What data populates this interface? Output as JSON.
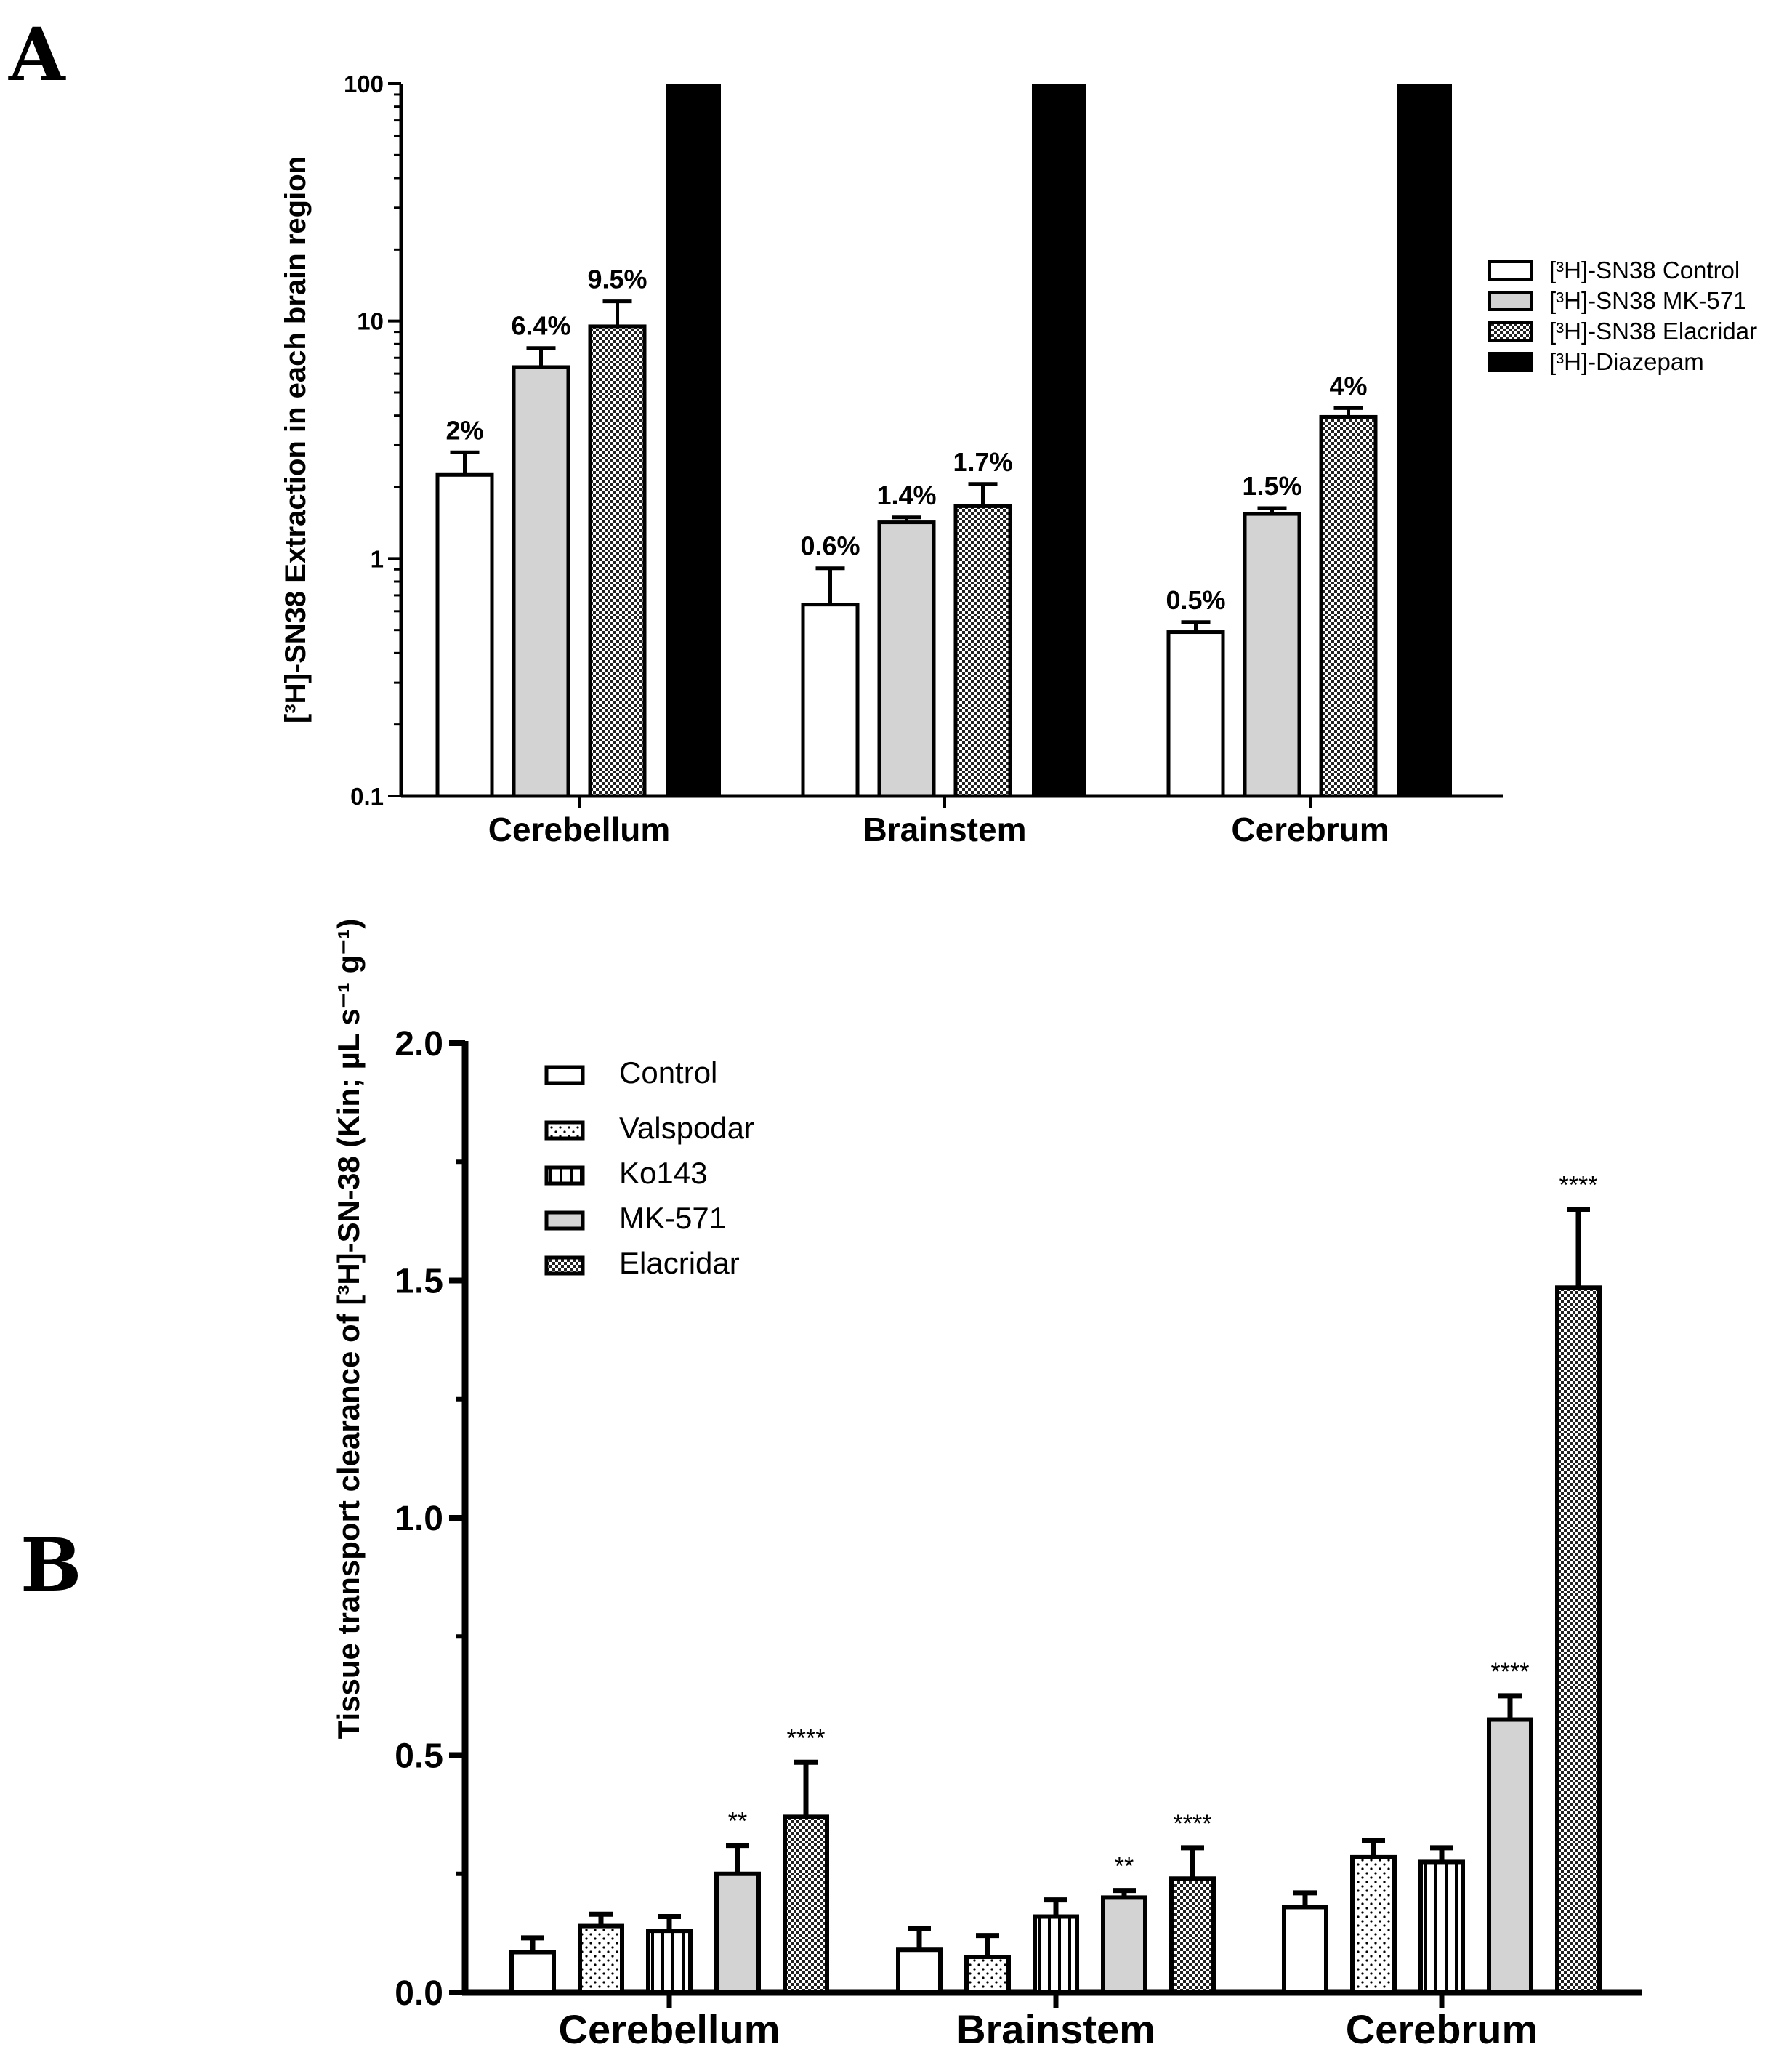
{
  "panels": {
    "a": {
      "letter": "A"
    },
    "b": {
      "letter": "B"
    }
  },
  "chart_data": [
    {
      "type": "bar",
      "scale": "log",
      "categories": [
        "Cerebellum",
        "Brainstem",
        "Cerebrum"
      ],
      "ylabel": "[³H]-SN38 Extraction in each brain region",
      "ylim": [
        0.1,
        100
      ],
      "yticks": [
        "0.1",
        "1",
        "10",
        "100"
      ],
      "series": [
        {
          "name": "[³H]-SN38 Control",
          "pattern": "white",
          "values": [
            2.25,
            0.64,
            0.49
          ],
          "errors": [
            0.55,
            0.27,
            0.05
          ],
          "labels": [
            "2%",
            "0.6%",
            "0.5%"
          ]
        },
        {
          "name": "[³H]-SN38 MK-571",
          "pattern": "gray",
          "values": [
            6.4,
            1.42,
            1.54
          ],
          "errors": [
            1.3,
            0.07,
            0.09
          ],
          "labels": [
            "6.4%",
            "1.4%",
            "1.5%"
          ]
        },
        {
          "name": "[³H]-SN38 Elacridar",
          "pattern": "checker",
          "values": [
            9.5,
            1.66,
            3.95
          ],
          "errors": [
            2.6,
            0.4,
            0.35
          ],
          "labels": [
            "9.5%",
            "1.7%",
            "4%"
          ]
        },
        {
          "name": "[³H]-Diazepam",
          "pattern": "black",
          "values": [
            100,
            100,
            100
          ],
          "errors": [
            0,
            0,
            0
          ],
          "labels": [
            "",
            "",
            ""
          ]
        }
      ],
      "legend": {
        "items": [
          "[³H]-SN38 Control",
          "[³H]-SN38 MK-571",
          "[³H]-SN38 Elacridar",
          "[³H]-Diazepam"
        ],
        "position": "right"
      }
    },
    {
      "type": "bar",
      "scale": "linear",
      "categories": [
        "Cerebellum",
        "Brainstem",
        "Cerebrum"
      ],
      "ylabel": "Tissue transport clearance of [³H]-SN-38 (Kin; µL s⁻¹ g⁻¹)",
      "ylim": [
        0,
        2.0
      ],
      "yticks": [
        "0.0",
        "0.5",
        "1.0",
        "1.5",
        "2.0"
      ],
      "series": [
        {
          "name": "Control",
          "pattern": "white",
          "values": [
            0.085,
            0.09,
            0.18
          ],
          "errors": [
            0.03,
            0.045,
            0.03
          ],
          "sig": [
            "",
            "",
            ""
          ]
        },
        {
          "name": "Valspodar",
          "pattern": "dots",
          "values": [
            0.14,
            0.075,
            0.285
          ],
          "errors": [
            0.025,
            0.045,
            0.035
          ],
          "sig": [
            "",
            "",
            ""
          ]
        },
        {
          "name": "Ko143",
          "pattern": "vstripes",
          "values": [
            0.13,
            0.16,
            0.275
          ],
          "errors": [
            0.03,
            0.035,
            0.03
          ],
          "sig": [
            "",
            "",
            ""
          ]
        },
        {
          "name": "MK-571",
          "pattern": "gray",
          "values": [
            0.25,
            0.2,
            0.575
          ],
          "errors": [
            0.06,
            0.015,
            0.05
          ],
          "sig": [
            "**",
            "**",
            "****"
          ]
        },
        {
          "name": "Elacridar",
          "pattern": "checker",
          "values": [
            0.37,
            0.24,
            1.485
          ],
          "errors": [
            0.115,
            0.065,
            0.165
          ],
          "sig": [
            "****",
            "****",
            "****"
          ]
        }
      ],
      "legend": {
        "items": [
          "Control",
          "Valspodar",
          "Ko143",
          "MK-571",
          "Elacridar"
        ],
        "position": "top-left"
      }
    }
  ]
}
